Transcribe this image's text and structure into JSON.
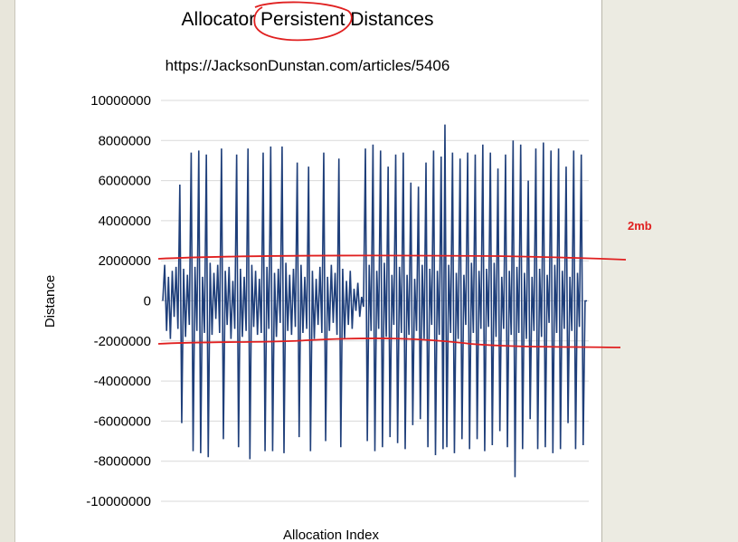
{
  "chart_data": {
    "type": "line",
    "title": "Allocator Persistent Distances",
    "subtitle": "https://JacksonDunstan.com/articles/5406",
    "xlabel": "Allocation Index",
    "ylabel": "Distance",
    "ylim": [
      -10000000,
      10000000
    ],
    "yticks": [
      "10000000",
      "8000000",
      "6000000",
      "4000000",
      "2000000",
      "0",
      "-2000000",
      "-4000000",
      "-6000000",
      "-8000000",
      "-10000000"
    ],
    "grid": true,
    "series_color": "#1f3f7a",
    "series": [
      {
        "values": [
          0,
          1800000,
          -1500000,
          1200000,
          -1900000,
          1500000,
          -800000,
          1700000,
          -1400000,
          5800000,
          -6100000,
          1600000,
          -1800000,
          1300000,
          -1200000,
          7400000,
          -7500000,
          1700000,
          -1500000,
          7500000,
          -7600000,
          1200000,
          -1600000,
          7300000,
          -7800000,
          1900000,
          -1700000,
          1400000,
          -900000,
          1800000,
          -1600000,
          7600000,
          -6900000,
          1500000,
          -1200000,
          1700000,
          -1900000,
          1000000,
          -1400000,
          7300000,
          -7300000,
          1600000,
          -1800000,
          1200000,
          -1500000,
          7600000,
          -7900000,
          1800000,
          -1300000,
          1500000,
          -1700000,
          1100000,
          -1600000,
          7400000,
          -7500000,
          1700000,
          -1400000,
          7700000,
          -7500000,
          1400000,
          -1800000,
          1600000,
          -1100000,
          7700000,
          -7600000,
          1900000,
          -1500000,
          1300000,
          -1700000,
          1600000,
          -1300000,
          6900000,
          -6800000,
          1800000,
          -1600000,
          1200000,
          -1400000,
          6700000,
          -7500000,
          1500000,
          -1900000,
          1100000,
          -1200000,
          1700000,
          -1600000,
          7400000,
          -7000000,
          1200000,
          -1500000,
          1800000,
          -1100000,
          1400000,
          -1700000,
          7100000,
          -7300000,
          1600000,
          -1900000,
          1000000,
          -1200000,
          1500000,
          -1400000,
          600000,
          -500000,
          900000,
          -800000,
          200000,
          -300000,
          7600000,
          -7000000,
          1800000,
          -1500000,
          7800000,
          -7500000,
          1500000,
          -1400000,
          7500000,
          -7300000,
          1900000,
          -1800000,
          6700000,
          -6800000,
          1300000,
          -1200000,
          7300000,
          -7100000,
          1700000,
          -1600000,
          7400000,
          -7400000,
          1300000,
          -1700000,
          5900000,
          -6200000,
          1100000,
          -1500000,
          5700000,
          -5900000,
          1800000,
          -1900000,
          6900000,
          -7300000,
          1600000,
          -1200000,
          7500000,
          -7700000,
          1500000,
          -1700000,
          7200000,
          -7400000,
          8800000,
          -7300000,
          1800000,
          -1600000,
          7400000,
          -7600000,
          1400000,
          -1900000,
          7100000,
          -6900000,
          1300000,
          -1200000,
          7400000,
          -7400000,
          1900000,
          -1600000,
          7300000,
          -6900000,
          1500000,
          -1400000,
          7800000,
          -7500000,
          1600000,
          -1300000,
          7400000,
          -7200000,
          1900000,
          -1800000,
          6600000,
          -6500000,
          1200000,
          -1400000,
          7300000,
          -7300000,
          1500000,
          -1700000,
          8000000,
          -8800000,
          1700000,
          -1600000,
          7800000,
          -7400000,
          1400000,
          -1900000,
          6000000,
          -5900000,
          1200000,
          -1500000,
          7600000,
          -7400000,
          1600000,
          -1800000,
          7900000,
          -7300000,
          1300000,
          -1100000,
          7500000,
          -7600000,
          1800000,
          -1600000,
          7600000,
          -7400000,
          1500000,
          -1400000,
          6700000,
          -6100000,
          1200000,
          -1500000,
          7500000,
          -7400000,
          1400000,
          -1300000,
          7300000,
          -7200000,
          0,
          0
        ]
      }
    ],
    "annotations": {
      "note_label": "2mb",
      "note_color": "#e02020"
    }
  }
}
